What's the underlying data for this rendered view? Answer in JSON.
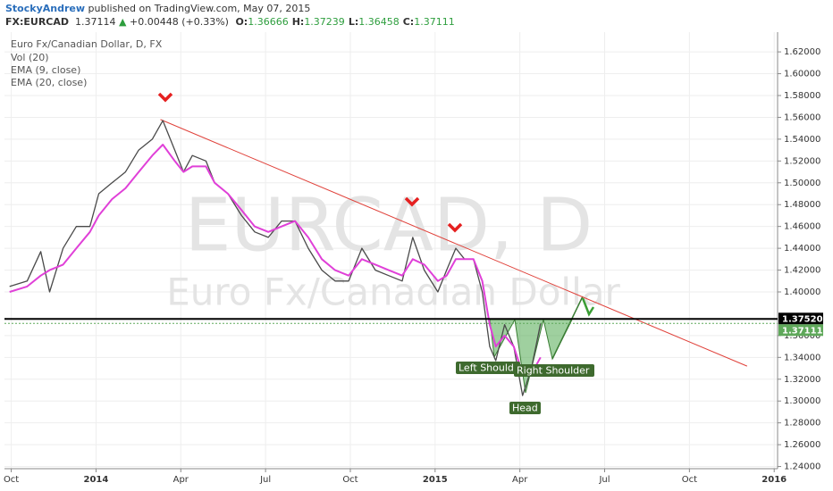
{
  "header": {
    "author": "StockyAndrew",
    "published": "published on TradingView.com, May 07, 2015",
    "symbol": "FX:EURCAD",
    "last": "1.37114",
    "change": "+0.00448 (+0.33%)",
    "ohlc": [
      {
        "label": "O:",
        "value": "1.36666"
      },
      {
        "label": "H:",
        "value": "1.37239"
      },
      {
        "label": "L:",
        "value": "1.36458"
      },
      {
        "label": "C:",
        "value": "1.37111"
      }
    ]
  },
  "chart_data": {
    "type": "line",
    "title": "Euro Fx/Canadian Dollar, D, FX",
    "indicators": [
      "Vol (20)",
      "EMA (9, close)",
      "EMA (20, close)"
    ],
    "watermark": [
      "EURCAD, D",
      "Euro Fx/Canadian Dollar"
    ],
    "x": [
      2013.745,
      2013.797,
      2013.837,
      2013.863,
      2013.903,
      2013.942,
      2013.982,
      2014.008,
      2014.047,
      2014.087,
      2014.126,
      2014.166,
      2014.197,
      2014.232,
      2014.258,
      2014.284,
      2014.324,
      2014.35,
      2014.389,
      2014.429,
      2014.468,
      2014.508,
      2014.547,
      2014.587,
      2014.626,
      2014.666,
      2014.705,
      2014.745,
      2014.784,
      2014.824,
      2014.863,
      2014.903,
      2014.934,
      2014.968,
      2015.008,
      2015.034,
      2015.061,
      2015.087,
      2015.113,
      2015.139,
      2015.161,
      2015.179,
      2015.205,
      2015.232,
      2015.258,
      2015.284,
      2015.311
    ],
    "series": [
      {
        "name": "EURCAD",
        "color": "#4a4a4a",
        "values": [
          1.405,
          1.41,
          1.437,
          1.4,
          1.44,
          1.46,
          1.46,
          1.49,
          1.5,
          1.51,
          1.53,
          1.54,
          1.557,
          1.53,
          1.51,
          1.525,
          1.52,
          1.5,
          1.49,
          1.47,
          1.455,
          1.45,
          1.465,
          1.465,
          1.44,
          1.42,
          1.41,
          1.41,
          1.44,
          1.42,
          1.415,
          1.41,
          1.45,
          1.42,
          1.4,
          1.42,
          1.44,
          1.43,
          1.43,
          1.4,
          1.35,
          1.337,
          1.37,
          1.35,
          1.305,
          1.33,
          1.371
        ]
      },
      {
        "name": "EMA (20, close)",
        "color": "#e040d8",
        "values": [
          1.4,
          1.405,
          1.415,
          1.42,
          1.425,
          1.44,
          1.455,
          1.47,
          1.485,
          1.495,
          1.51,
          1.525,
          1.535,
          1.52,
          1.51,
          1.515,
          1.515,
          1.5,
          1.49,
          1.475,
          1.46,
          1.455,
          1.46,
          1.465,
          1.45,
          1.43,
          1.42,
          1.415,
          1.43,
          1.425,
          1.42,
          1.415,
          1.43,
          1.425,
          1.41,
          1.415,
          1.43,
          1.43,
          1.43,
          1.41,
          1.37,
          1.35,
          1.36,
          1.35,
          1.325,
          1.325,
          1.34
        ]
      }
    ],
    "trendline": {
      "color": "#e0413a",
      "x": [
        2014.19,
        2015.92
      ],
      "y": [
        1.558,
        1.332
      ]
    },
    "levels": [
      {
        "value": 1.3752,
        "label": "1.37520",
        "color": "#000000"
      },
      {
        "value": 1.37111,
        "label": "1.37111",
        "color": "#5fa85a"
      }
    ],
    "pattern_labels": [
      "Left Shoulde",
      "Right Shoulder",
      "Head"
    ],
    "xlim": [
      2013.73,
      2016.01
    ],
    "xticks": [
      {
        "value": 2013.75,
        "label": "Oct"
      },
      {
        "value": 2014.0,
        "label": "2014"
      },
      {
        "value": 2014.25,
        "label": "Apr"
      },
      {
        "value": 2014.5,
        "label": "Jul"
      },
      {
        "value": 2014.75,
        "label": "Oct"
      },
      {
        "value": 2015.0,
        "label": "2015"
      },
      {
        "value": 2015.25,
        "label": "Apr"
      },
      {
        "value": 2015.5,
        "label": "Jul"
      },
      {
        "value": 2015.75,
        "label": "Oct"
      },
      {
        "value": 2016.0,
        "label": "2016"
      }
    ],
    "ylim": [
      1.238,
      1.643
    ],
    "yticks": [
      {
        "value": 1.24,
        "label": "1.24000"
      },
      {
        "value": 1.26,
        "label": "1.26000"
      },
      {
        "value": 1.28,
        "label": "1.28000"
      },
      {
        "value": 1.3,
        "label": "1.30000"
      },
      {
        "value": 1.32,
        "label": "1.32000"
      },
      {
        "value": 1.34,
        "label": "1.34000"
      },
      {
        "value": 1.36,
        "label": "1.36000"
      },
      {
        "value": 1.4,
        "label": "1.40000"
      },
      {
        "value": 1.42,
        "label": "1.42000"
      },
      {
        "value": 1.44,
        "label": "1.44000"
      },
      {
        "value": 1.46,
        "label": "1.46000"
      },
      {
        "value": 1.48,
        "label": "1.48000"
      },
      {
        "value": 1.5,
        "label": "1.50000"
      },
      {
        "value": 1.52,
        "label": "1.52000"
      },
      {
        "value": 1.54,
        "label": "1.54000"
      },
      {
        "value": 1.56,
        "label": "1.56000"
      },
      {
        "value": 1.58,
        "label": "1.58000"
      },
      {
        "value": 1.6,
        "label": "1.60000"
      },
      {
        "value": 1.62,
        "label": "1.62000"
      }
    ],
    "grid": true
  }
}
